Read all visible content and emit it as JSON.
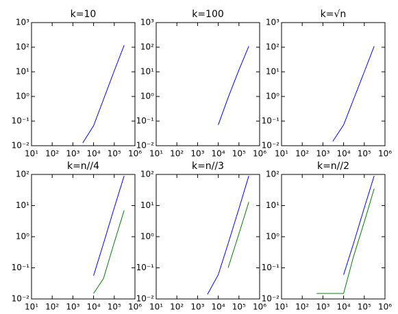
{
  "chart_data": [
    {
      "type": "line",
      "title": "k=10",
      "xscale": "log",
      "yscale": "log",
      "x": [
        3000,
        10000,
        30000,
        100000,
        300000
      ],
      "series": [
        {
          "color": "#0000ff",
          "values": [
            0.013,
            0.065,
            0.75,
            11,
            120
          ]
        }
      ],
      "xlim": [
        10,
        1000000
      ],
      "ylim": [
        0.01,
        1000
      ],
      "xticks": [
        {
          "value": 10,
          "label": "10¹"
        },
        {
          "value": 100,
          "label": "10²"
        },
        {
          "value": 1000,
          "label": "10³"
        },
        {
          "value": 10000,
          "label": "10⁴"
        },
        {
          "value": 100000,
          "label": "10⁵"
        },
        {
          "value": 1000000,
          "label": "10⁶"
        }
      ],
      "yticks": [
        {
          "value": 0.01,
          "label": "10⁻²"
        },
        {
          "value": 0.1,
          "label": "10⁻¹"
        },
        {
          "value": 1,
          "label": "10⁰"
        },
        {
          "value": 10,
          "label": "10¹"
        },
        {
          "value": 100,
          "label": "10²"
        },
        {
          "value": 1000,
          "label": "10³"
        }
      ]
    },
    {
      "type": "line",
      "title": "k=100",
      "xscale": "log",
      "yscale": "log",
      "x": [
        10000,
        30000,
        100000,
        300000
      ],
      "series": [
        {
          "color": "#0000ff",
          "values": [
            0.07,
            0.9,
            12,
            110
          ]
        }
      ],
      "xlim": [
        10,
        1000000
      ],
      "ylim": [
        0.01,
        1000
      ],
      "xticks": [
        {
          "value": 10,
          "label": "10¹"
        },
        {
          "value": 100,
          "label": "10²"
        },
        {
          "value": 1000,
          "label": "10³"
        },
        {
          "value": 10000,
          "label": "10⁴"
        },
        {
          "value": 100000,
          "label": "10⁵"
        },
        {
          "value": 1000000,
          "label": "10⁶"
        }
      ],
      "yticks": [
        {
          "value": 0.01,
          "label": "10⁻²"
        },
        {
          "value": 0.1,
          "label": "10⁻¹"
        },
        {
          "value": 1,
          "label": "10⁰"
        },
        {
          "value": 10,
          "label": "10¹"
        },
        {
          "value": 100,
          "label": "10²"
        },
        {
          "value": 1000,
          "label": "10³"
        }
      ]
    },
    {
      "type": "line",
      "title": "k=√n",
      "xscale": "log",
      "yscale": "log",
      "x": [
        3000,
        10000,
        30000,
        100000,
        300000
      ],
      "series": [
        {
          "color": "#0000ff",
          "values": [
            0.015,
            0.07,
            0.75,
            10,
            110
          ]
        }
      ],
      "xlim": [
        10,
        1000000
      ],
      "ylim": [
        0.01,
        1000
      ],
      "xticks": [
        {
          "value": 10,
          "label": "10¹"
        },
        {
          "value": 100,
          "label": "10²"
        },
        {
          "value": 1000,
          "label": "10³"
        },
        {
          "value": 10000,
          "label": "10⁴"
        },
        {
          "value": 100000,
          "label": "10⁵"
        },
        {
          "value": 1000000,
          "label": "10⁶"
        }
      ],
      "yticks": [
        {
          "value": 0.01,
          "label": "10⁻²"
        },
        {
          "value": 0.1,
          "label": "10⁻¹"
        },
        {
          "value": 1,
          "label": "10⁰"
        },
        {
          "value": 10,
          "label": "10¹"
        },
        {
          "value": 100,
          "label": "10²"
        },
        {
          "value": 1000,
          "label": "10³"
        }
      ]
    },
    {
      "type": "line",
      "title": "k=n//4",
      "xscale": "log",
      "yscale": "log",
      "x": [
        10000,
        30000,
        100000,
        300000
      ],
      "series": [
        {
          "color": "#0000ff",
          "values": [
            0.056,
            0.6,
            8.5,
            90
          ]
        },
        {
          "color": "#008000",
          "values": [
            0.015,
            0.045,
            0.65,
            7
          ]
        }
      ],
      "xlim": [
        10,
        1000000
      ],
      "ylim": [
        0.01,
        100
      ],
      "xticks": [
        {
          "value": 10,
          "label": "10¹"
        },
        {
          "value": 100,
          "label": "10²"
        },
        {
          "value": 1000,
          "label": "10³"
        },
        {
          "value": 10000,
          "label": "10⁴"
        },
        {
          "value": 100000,
          "label": "10⁵"
        },
        {
          "value": 1000000,
          "label": "10⁶"
        }
      ],
      "yticks": [
        {
          "value": 0.01,
          "label": "10⁻²"
        },
        {
          "value": 0.1,
          "label": "10⁻¹"
        },
        {
          "value": 1,
          "label": "10⁰"
        },
        {
          "value": 10,
          "label": "10¹"
        },
        {
          "value": 100,
          "label": "10²"
        }
      ]
    },
    {
      "type": "line",
      "title": "k=n//3",
      "xscale": "log",
      "yscale": "log",
      "x": [
        3000,
        10000,
        30000,
        100000,
        300000
      ],
      "series": [
        {
          "color": "#0000ff",
          "values": [
            0.014,
            0.06,
            0.6,
            8,
            90
          ]
        },
        {
          "color": "#008000",
          "values": [
            null,
            null,
            0.1,
            1.25,
            13
          ]
        }
      ],
      "xlim": [
        10,
        1000000
      ],
      "ylim": [
        0.01,
        100
      ],
      "xticks": [
        {
          "value": 10,
          "label": "10¹"
        },
        {
          "value": 100,
          "label": "10²"
        },
        {
          "value": 1000,
          "label": "10³"
        },
        {
          "value": 10000,
          "label": "10⁴"
        },
        {
          "value": 100000,
          "label": "10⁵"
        },
        {
          "value": 1000000,
          "label": "10⁶"
        }
      ],
      "yticks": [
        {
          "value": 0.01,
          "label": "10⁻²"
        },
        {
          "value": 0.1,
          "label": "10⁻¹"
        },
        {
          "value": 1,
          "label": "10⁰"
        },
        {
          "value": 10,
          "label": "10¹"
        },
        {
          "value": 100,
          "label": "10²"
        }
      ]
    },
    {
      "type": "line",
      "title": "k=n//2",
      "xscale": "log",
      "yscale": "log",
      "x": [
        500,
        10000,
        30000,
        100000,
        300000
      ],
      "series": [
        {
          "color": "#0000ff",
          "values": [
            null,
            0.06,
            0.6,
            8.5,
            90
          ]
        },
        {
          "color": "#008000",
          "values": [
            0.015,
            0.015,
            0.23,
            3,
            35
          ]
        }
      ],
      "xlim": [
        10,
        1000000
      ],
      "ylim": [
        0.01,
        100
      ],
      "xticks": [
        {
          "value": 10,
          "label": "10¹"
        },
        {
          "value": 100,
          "label": "10²"
        },
        {
          "value": 1000,
          "label": "10³"
        },
        {
          "value": 10000,
          "label": "10⁴"
        },
        {
          "value": 100000,
          "label": "10⁵"
        },
        {
          "value": 1000000,
          "label": "10⁶"
        }
      ],
      "yticks": [
        {
          "value": 0.01,
          "label": "10⁻²"
        },
        {
          "value": 0.1,
          "label": "10⁻¹"
        },
        {
          "value": 1,
          "label": "10⁰"
        },
        {
          "value": 10,
          "label": "10¹"
        },
        {
          "value": 100,
          "label": "10²"
        }
      ]
    }
  ]
}
